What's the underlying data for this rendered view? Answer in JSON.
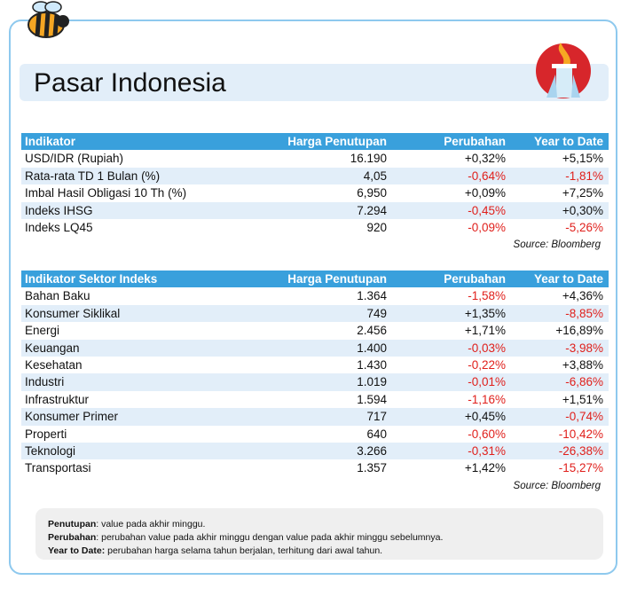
{
  "header": {
    "title": "Pasar Indonesia"
  },
  "tables": [
    {
      "columns": [
        "Indikator",
        "Harga Penutupan",
        "Perubahan",
        "Year to Date"
      ],
      "rows": [
        [
          "USD/IDR (Rupiah)",
          "16.190",
          "+0,32%",
          "+5,15%"
        ],
        [
          "Rata-rata TD 1 Bulan (%)",
          "4,05",
          "-0,64%",
          "-1,81%"
        ],
        [
          "Imbal Hasil Obligasi 10 Th (%)",
          "6,950",
          "+0,09%",
          "+7,25%"
        ],
        [
          "Indeks IHSG",
          "7.294",
          "-0,45%",
          "+0,30%"
        ],
        [
          "Indeks LQ45",
          "920",
          "-0,09%",
          "-5,26%"
        ]
      ],
      "source": "Source: Bloomberg"
    },
    {
      "columns": [
        "Indikator Sektor Indeks",
        "Harga Penutupan",
        "Perubahan",
        "Year to Date"
      ],
      "rows": [
        [
          "Bahan Baku",
          "1.364",
          "-1,58%",
          "+4,36%"
        ],
        [
          "Konsumer Siklikal",
          "749",
          "+1,35%",
          "-8,85%"
        ],
        [
          "Energi",
          "2.456",
          "+1,71%",
          "+16,89%"
        ],
        [
          "Keuangan",
          "1.400",
          "-0,03%",
          "-3,98%"
        ],
        [
          "Kesehatan",
          "1.430",
          "-0,22%",
          "+3,88%"
        ],
        [
          "Industri",
          "1.019",
          "-0,01%",
          "-6,86%"
        ],
        [
          "Infrastruktur",
          "1.594",
          "-1,16%",
          "+1,51%"
        ],
        [
          "Konsumer Primer",
          "717",
          "+0,45%",
          "-0,74%"
        ],
        [
          "Properti",
          "640",
          "-0,60%",
          "-10,42%"
        ],
        [
          "Teknologi",
          "3.266",
          "-0,31%",
          "-26,38%"
        ],
        [
          "Transportasi",
          "1.357",
          "+1,42%",
          "-15,27%"
        ]
      ],
      "source": "Source: Bloomberg"
    }
  ],
  "notes": [
    {
      "term": "Penutupan",
      "text": ": value pada akhir minggu."
    },
    {
      "term": "Perubahan",
      "text": ": perubahan value pada akhir minggu dengan value pada akhir minggu sebelumnya."
    },
    {
      "term": "Year to Date:",
      "text": " perubahan harga selama tahun berjalan, terhitung dari awal tahun."
    }
  ]
}
